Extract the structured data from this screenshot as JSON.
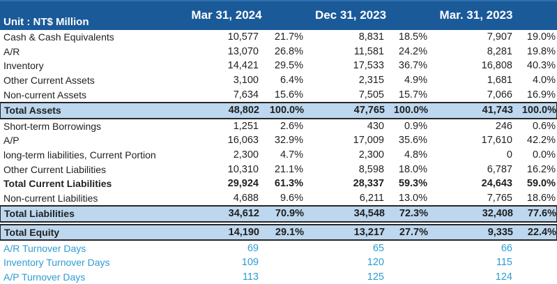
{
  "header": {
    "unit_label": "Unit : NT$ Million",
    "columns": [
      "Mar 31, 2024",
      "Dec 31, 2023",
      "Mar. 31, 2023"
    ]
  },
  "colors": {
    "header_bg": "#1B5A99",
    "header_text": "#FFFFFF",
    "total_row_bg": "#BDD7EE",
    "border_dark": "#262626",
    "ratio_text": "#2D9BD3",
    "body_text": "#1F1F1F"
  },
  "rows": [
    {
      "label": "Cash & Cash Equivalents",
      "type": "normal",
      "values": [
        "10,577",
        "21.7%",
        "8,831",
        "18.5%",
        "7,907",
        "19.0%"
      ]
    },
    {
      "label": "A/R",
      "type": "normal",
      "values": [
        "13,070",
        "26.8%",
        "11,581",
        "24.2%",
        "8,281",
        "19.8%"
      ]
    },
    {
      "label": "Inventory",
      "type": "normal",
      "values": [
        "14,421",
        "29.5%",
        "17,533",
        "36.7%",
        "16,808",
        "40.3%"
      ]
    },
    {
      "label": "Other Current Assets",
      "type": "normal",
      "values": [
        "3,100",
        "6.4%",
        "2,315",
        "4.9%",
        "1,681",
        "4.0%"
      ]
    },
    {
      "label": "Non-current Assets",
      "type": "normal",
      "values": [
        "7,634",
        "15.6%",
        "7,505",
        "15.7%",
        "7,066",
        "16.9%"
      ]
    },
    {
      "label": "Total Assets",
      "type": "total-blue",
      "values": [
        "48,802",
        "100.0%",
        "47,765",
        "100.0%",
        "41,743",
        "100.0%"
      ]
    },
    {
      "label": "Short-term Borrowings",
      "type": "normal",
      "values": [
        "1,251",
        "2.6%",
        "430",
        "0.9%",
        "246",
        "0.6%"
      ]
    },
    {
      "label": "A/P",
      "type": "normal",
      "values": [
        "16,063",
        "32.9%",
        "17,009",
        "35.6%",
        "17,610",
        "42.2%"
      ]
    },
    {
      "label": "long-term liabilities, Current Portion",
      "type": "normal",
      "values": [
        "2,300",
        "4.7%",
        "2,300",
        "4.8%",
        "0",
        "0.0%"
      ]
    },
    {
      "label": "Other Current Liabilities",
      "type": "normal",
      "values": [
        "10,310",
        "21.1%",
        "8,598",
        "18.0%",
        "6,787",
        "16.2%"
      ]
    },
    {
      "label": "Total Current Liabilities",
      "type": "total-bold",
      "values": [
        "29,924",
        "61.3%",
        "28,337",
        "59.3%",
        "24,643",
        "59.0%"
      ]
    },
    {
      "label": "Non-current Liabilities",
      "type": "normal",
      "values": [
        "4,688",
        "9.6%",
        "6,211",
        "13.0%",
        "7,765",
        "18.6%"
      ]
    },
    {
      "label": "Total Liabilities",
      "type": "total-blue",
      "values": [
        "34,612",
        "70.9%",
        "34,548",
        "72.3%",
        "32,408",
        "77.6%"
      ]
    },
    {
      "label": "Total Equity",
      "type": "total-blue-gap",
      "values": [
        "14,190",
        "29.1%",
        "13,217",
        "27.7%",
        "9,335",
        "22.4%"
      ]
    },
    {
      "label": "A/R Turnover Days",
      "type": "ratio",
      "values": [
        "69",
        "",
        "65",
        "",
        "66",
        ""
      ]
    },
    {
      "label": "Inventory Turnover Days",
      "type": "ratio",
      "values": [
        "109",
        "",
        "120",
        "",
        "115",
        ""
      ]
    },
    {
      "label": "A/P Turnover Days",
      "type": "ratio",
      "values": [
        "113",
        "",
        "125",
        "",
        "124",
        ""
      ]
    }
  ]
}
